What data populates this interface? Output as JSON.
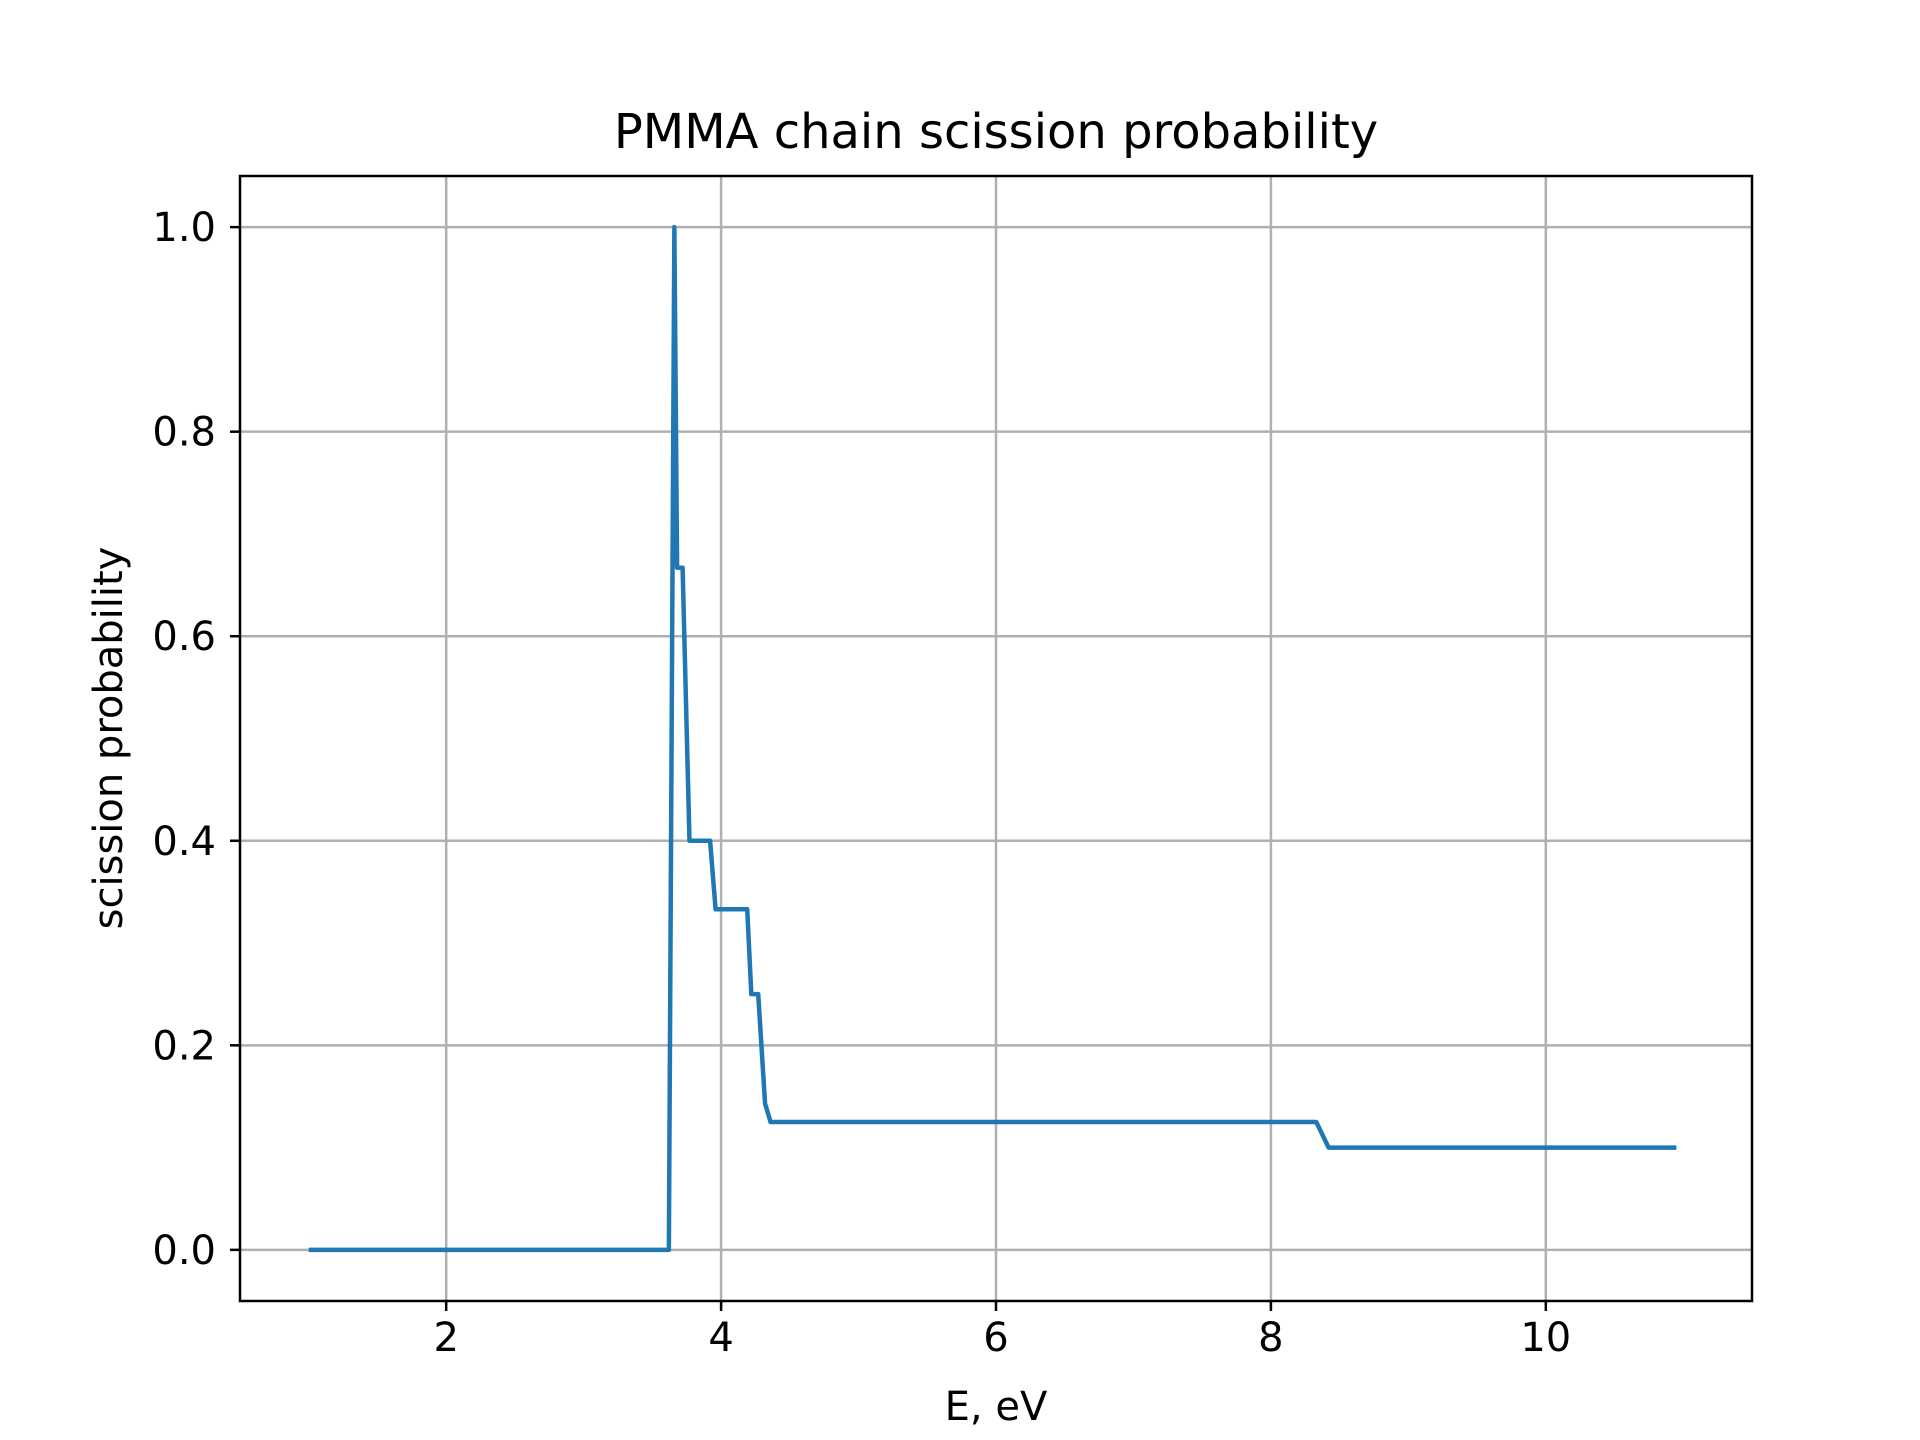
{
  "chart_data": {
    "type": "line",
    "title": "PMMA chain scission probability",
    "xlabel": "E, eV",
    "ylabel": "scission probability",
    "xlim": [
      0.5,
      11.5
    ],
    "ylim": [
      -0.05,
      1.05
    ],
    "grid": true,
    "x_ticks": [
      2,
      4,
      6,
      8,
      10
    ],
    "y_ticks": [
      0.0,
      0.2,
      0.4,
      0.6,
      0.8,
      1.0
    ],
    "x_tick_labels": [
      "2",
      "4",
      "6",
      "8",
      "10"
    ],
    "y_tick_labels": [
      "0.0",
      "0.2",
      "0.4",
      "0.6",
      "0.8",
      "1.0"
    ],
    "series": [
      {
        "color": "#1f77b4",
        "x": [
          1.0,
          3.62,
          3.66,
          3.68,
          3.72,
          3.77,
          3.92,
          3.96,
          4.19,
          4.22,
          4.27,
          4.32,
          4.36,
          8.33,
          8.42,
          10.95
        ],
        "y": [
          0.0,
          0.0,
          1.0,
          0.667,
          0.667,
          0.4,
          0.4,
          0.333,
          0.333,
          0.25,
          0.25,
          0.143,
          0.125,
          0.125,
          0.1,
          0.1
        ]
      }
    ]
  }
}
